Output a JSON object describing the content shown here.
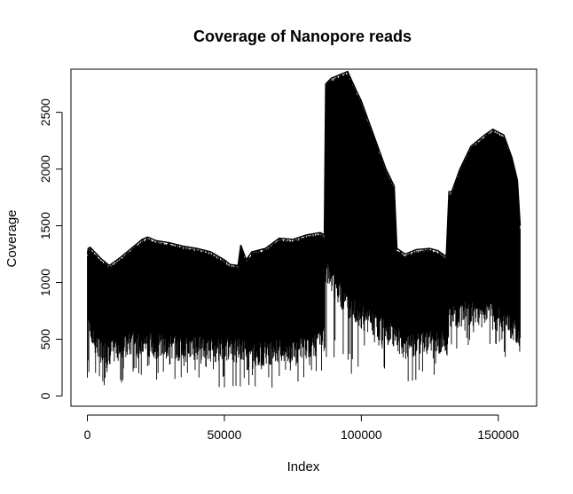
{
  "chart_data": {
    "type": "line",
    "title": "Coverage of Nanopore reads",
    "xlabel": "Index",
    "ylabel": "Coverage",
    "xlim": [
      -6000,
      164000
    ],
    "ylim": [
      -90,
      2880
    ],
    "x_ticks": [
      0,
      50000,
      100000,
      150000
    ],
    "x_tick_labels": [
      "0",
      "50000",
      "100000",
      "150000"
    ],
    "y_ticks": [
      0,
      500,
      1000,
      1500,
      2000,
      2500
    ],
    "y_tick_labels": [
      "0",
      "500",
      "1000",
      "1500",
      "2000",
      "2500"
    ],
    "grid": false,
    "legend": "none",
    "color": "#000000",
    "series": [
      {
        "x": [
          0,
          300,
          1000,
          3000,
          5000,
          8000,
          12000,
          16000,
          20000,
          22000,
          25000,
          30000,
          35000,
          40000,
          45000,
          50000,
          52000,
          55000,
          56000,
          58000,
          60000,
          65000,
          70000,
          75000,
          80000,
          85000,
          86500,
          87000,
          89000,
          92000,
          95000,
          98000,
          100000,
          103000,
          106000,
          109000,
          112000,
          113000,
          116000,
          120000,
          125000,
          128000,
          131000,
          132000,
          133000,
          136000,
          140000,
          145000,
          148000,
          152000,
          155000,
          157000,
          158000
        ],
        "upper": [
          1250,
          1300,
          1310,
          1260,
          1210,
          1150,
          1220,
          1300,
          1380,
          1400,
          1370,
          1350,
          1320,
          1300,
          1270,
          1200,
          1160,
          1150,
          1330,
          1200,
          1270,
          1300,
          1390,
          1380,
          1420,
          1440,
          1420,
          2750,
          2800,
          2830,
          2860,
          2700,
          2600,
          2400,
          2200,
          2000,
          1850,
          1300,
          1250,
          1290,
          1300,
          1280,
          1230,
          1800,
          1800,
          2000,
          2200,
          2300,
          2350,
          2300,
          2100,
          1900,
          1500
        ],
        "lower": [
          800,
          700,
          550,
          450,
          400,
          380,
          420,
          450,
          480,
          460,
          440,
          430,
          420,
          420,
          410,
          400,
          400,
          390,
          420,
          350,
          360,
          380,
          390,
          400,
          430,
          470,
          480,
          1100,
          1000,
          900,
          800,
          750,
          700,
          650,
          600,
          560,
          540,
          500,
          420,
          450,
          480,
          470,
          450,
          650,
          700,
          720,
          720,
          720,
          700,
          650,
          600,
          550,
          450
        ],
        "min": [
          100,
          90,
          80,
          100,
          90,
          90,
          100,
          130,
          120,
          150,
          140,
          130,
          120,
          110,
          100,
          60,
          50,
          40,
          60,
          30,
          30,
          50,
          70,
          100,
          130,
          160,
          170,
          350,
          300,
          280,
          200,
          120,
          300,
          200,
          250,
          200,
          220,
          300,
          80,
          120,
          170,
          180,
          200,
          300,
          350,
          400,
          420,
          450,
          400,
          350,
          300,
          200,
          50
        ]
      }
    ]
  }
}
